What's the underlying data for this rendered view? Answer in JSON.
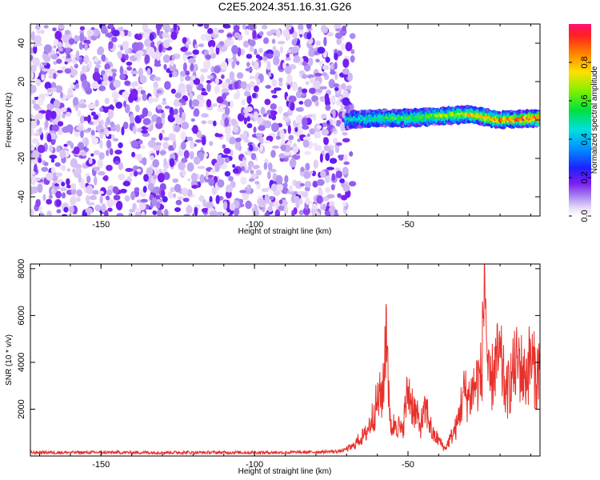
{
  "colors": {
    "snr_line": "#e8302a",
    "frame": "#000000",
    "background": "#ffffff"
  },
  "chart_data": [
    {
      "type": "heatmap",
      "title": "C2E5.2024.351.16.31.G26",
      "xlabel": "Height of straight line (km)",
      "ylabel": "Frequency (Hz)",
      "xlim": [
        -173,
        -7
      ],
      "ylim": [
        -50,
        50
      ],
      "xticks": [
        -150,
        -100,
        -50
      ],
      "yticks": [
        -40,
        -20,
        0,
        20,
        40
      ],
      "grid": false,
      "colorbar": {
        "label": "Normalized spectral amplitude",
        "ticks": [
          0.0,
          0.2,
          0.4,
          0.6,
          0.8
        ],
        "range": [
          0,
          1
        ]
      },
      "regions": [
        {
          "x_range": [
            -173,
            -70
          ],
          "freq_range": [
            -50,
            50
          ],
          "description": "diffuse noise",
          "amplitude_range": [
            0.0,
            0.1
          ]
        },
        {
          "x_range": [
            -70,
            -7
          ],
          "freq_center": [
            [
              -70,
              0
            ],
            [
              -60,
              1
            ],
            [
              -50,
              1
            ],
            [
              -40,
              2
            ],
            [
              -30,
              3
            ],
            [
              -20,
              0
            ],
            [
              -7,
              1
            ]
          ],
          "freq_halfwidth": 4,
          "description": "concentrated signal",
          "amplitude_range": [
            0.2,
            1.0
          ]
        }
      ]
    },
    {
      "type": "line",
      "xlabel": "Height of straight line (km)",
      "ylabel": "SNR (10 * v/v)",
      "xlim": [
        -173,
        -7
      ],
      "ylim": [
        0,
        8200
      ],
      "xticks": [
        -150,
        -100,
        -50
      ],
      "yticks": [
        2000,
        4000,
        6000,
        8000
      ],
      "grid": false,
      "series": [
        {
          "x": [
            -173,
            -160,
            -150,
            -140,
            -130,
            -120,
            -110,
            -100,
            -90,
            -80,
            -72,
            -68,
            -66,
            -64,
            -62,
            -60,
            -58,
            -57,
            -56,
            -55,
            -54,
            -52,
            -50,
            -48,
            -46,
            -44,
            -42,
            -40,
            -38,
            -36,
            -34,
            -32,
            -30,
            -28,
            -26,
            -25,
            -24,
            -23,
            -22,
            -20,
            -18,
            -16,
            -14,
            -12,
            -10,
            -8,
            -7
          ],
          "y": [
            150,
            150,
            150,
            150,
            150,
            150,
            150,
            150,
            150,
            170,
            200,
            400,
            700,
            900,
            1500,
            2300,
            2800,
            6300,
            1500,
            1200,
            1500,
            1000,
            2800,
            2000,
            1300,
            2000,
            900,
            700,
            300,
            800,
            1300,
            2700,
            2500,
            3100,
            3500,
            8200,
            3200,
            3000,
            3800,
            4200,
            2600,
            3500,
            4100,
            3300,
            4200,
            3300,
            4300
          ]
        }
      ]
    }
  ]
}
